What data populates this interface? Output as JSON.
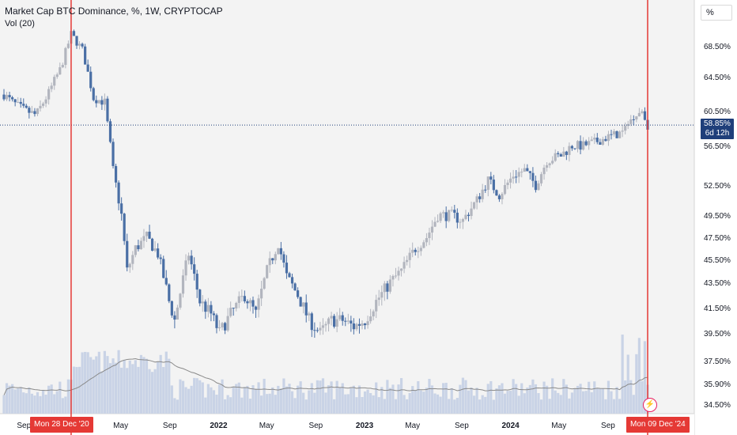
{
  "header": {
    "title": "Market Cap BTC Dominance, %, 1W, CRYPTOCAP",
    "volume_label": "Vol (20)",
    "unit_button": "%"
  },
  "price_tag": {
    "value": "58.85%",
    "countdown": "6d 12h"
  },
  "crosshair_labels": [
    "Mon 28 Dec '20",
    "Mon 09 Dec '24"
  ],
  "flash_icon": "lightning-icon",
  "colors": {
    "up": "#b2b5be",
    "down": "#4a6fa5",
    "volume": "#c9d3e6",
    "volume_ma": "#8a8a8a",
    "marker": "#e53935",
    "price_tag": "#1f3f7a"
  },
  "chart_data": {
    "type": "candlestick",
    "title": "Market Cap BTC Dominance, %, 1W, CRYPTOCAP",
    "y_ticks": [
      "68.50%",
      "64.50%",
      "60.50%",
      "56.50%",
      "52.50%",
      "49.50%",
      "47.50%",
      "45.50%",
      "43.50%",
      "41.50%",
      "39.50%",
      "37.50%",
      "35.90%",
      "34.50%"
    ],
    "y_tick_values": [
      68.5,
      64.5,
      60.5,
      56.5,
      52.5,
      49.5,
      47.5,
      45.5,
      43.5,
      41.5,
      39.5,
      37.5,
      35.9,
      34.5
    ],
    "x_ticks": [
      "Sep",
      "May",
      "Sep",
      "2022",
      "May",
      "Sep",
      "2023",
      "May",
      "Sep",
      "2024",
      "May",
      "Sep"
    ],
    "x_tick_dates": [
      "2020-09-01",
      "2021-05-01",
      "2021-09-01",
      "2022-01-01",
      "2022-05-01",
      "2022-09-01",
      "2023-01-01",
      "2023-05-01",
      "2023-09-01",
      "2024-01-01",
      "2024-05-01",
      "2024-09-01"
    ],
    "current_value": 58.85,
    "markers": [
      "2020-12-28",
      "2024-12-09"
    ],
    "series_close": [
      [
        "2020-07-13",
        62.4
      ],
      [
        "2020-08-03",
        61.5
      ],
      [
        "2020-09-01",
        60.6
      ],
      [
        "2020-10-01",
        60.0
      ],
      [
        "2020-11-01",
        62.5
      ],
      [
        "2020-12-01",
        65.5
      ],
      [
        "2020-12-28",
        70.0
      ],
      [
        "2021-01-25",
        68.0
      ],
      [
        "2021-02-22",
        62.0
      ],
      [
        "2021-03-22",
        61.5
      ],
      [
        "2021-04-12",
        54.0
      ],
      [
        "2021-05-03",
        49.5
      ],
      [
        "2021-05-17",
        44.5
      ],
      [
        "2021-06-07",
        46.5
      ],
      [
        "2021-07-05",
        47.5
      ],
      [
        "2021-08-02",
        46.0
      ],
      [
        "2021-08-30",
        42.0
      ],
      [
        "2021-09-13",
        40.5
      ],
      [
        "2021-10-18",
        46.0
      ],
      [
        "2021-11-15",
        42.0
      ],
      [
        "2021-12-13",
        41.0
      ],
      [
        "2022-01-03",
        39.5
      ],
      [
        "2022-01-31",
        41.0
      ],
      [
        "2022-03-07",
        42.5
      ],
      [
        "2022-04-04",
        41.0
      ],
      [
        "2022-05-02",
        44.5
      ],
      [
        "2022-05-30",
        47.0
      ],
      [
        "2022-06-20",
        44.0
      ],
      [
        "2022-07-18",
        42.5
      ],
      [
        "2022-08-15",
        40.5
      ],
      [
        "2022-09-12",
        39.5
      ],
      [
        "2022-10-10",
        40.5
      ],
      [
        "2022-11-07",
        40.5
      ],
      [
        "2022-12-05",
        40.0
      ],
      [
        "2023-01-02",
        40.5
      ],
      [
        "2023-01-30",
        42.0
      ],
      [
        "2023-03-06",
        43.5
      ],
      [
        "2023-04-03",
        44.5
      ],
      [
        "2023-05-08",
        46.5
      ],
      [
        "2023-06-05",
        47.5
      ],
      [
        "2023-07-03",
        49.5
      ],
      [
        "2023-08-07",
        49.5
      ],
      [
        "2023-09-04",
        49.0
      ],
      [
        "2023-10-09",
        51.0
      ],
      [
        "2023-11-06",
        53.0
      ],
      [
        "2023-12-04",
        51.5
      ],
      [
        "2024-01-08",
        53.5
      ],
      [
        "2024-02-05",
        54.0
      ],
      [
        "2024-03-04",
        52.5
      ],
      [
        "2024-04-01",
        55.0
      ],
      [
        "2024-05-06",
        55.5
      ],
      [
        "2024-06-03",
        56.5
      ],
      [
        "2024-07-01",
        56.5
      ],
      [
        "2024-08-05",
        57.0
      ],
      [
        "2024-09-02",
        57.5
      ],
      [
        "2024-10-07",
        58.0
      ],
      [
        "2024-11-04",
        60.0
      ],
      [
        "2024-11-25",
        60.5
      ],
      [
        "2024-12-09",
        58.85
      ]
    ]
  }
}
